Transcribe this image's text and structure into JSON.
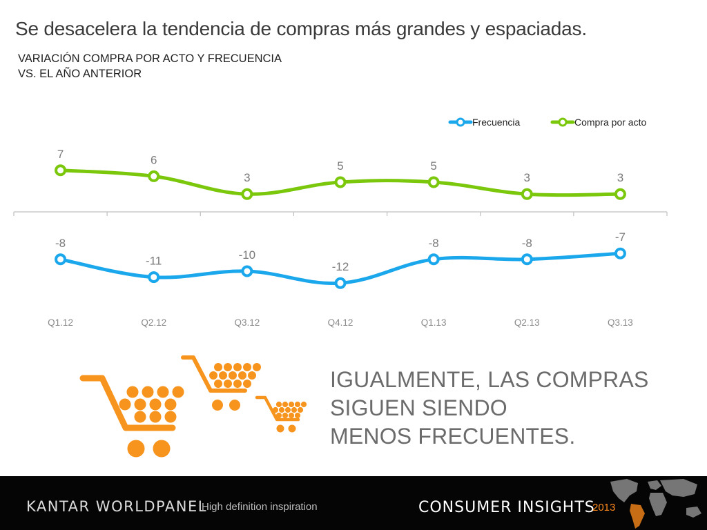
{
  "slide": {
    "title": "Se desacelera la tendencia de compras más grandes y espaciadas.",
    "subtitle_line1": "VARIACIÓN COMPRA POR ACTO Y FRECUENCIA",
    "subtitle_line2": "VS. EL AÑO ANTERIOR",
    "message_line1": "IGUALMENTE, LAS COMPRAS",
    "message_line2": "SIGUEN SIENDO",
    "message_line3": "MENOS FRECUENTES."
  },
  "chart_data": {
    "type": "line",
    "categories": [
      "Q1.12",
      "Q2.12",
      "Q3.12",
      "Q4.12",
      "Q1.13",
      "Q2.13",
      "Q3.13"
    ],
    "series": [
      {
        "name": "Frecuencia",
        "values": [
          -8,
          -11,
          -10,
          -12,
          -8,
          -8,
          -7
        ],
        "color": "#1aa7ec"
      },
      {
        "name": "Compra por acto",
        "values": [
          7,
          6,
          3,
          5,
          5,
          3,
          3
        ],
        "color": "#7ac70c"
      }
    ],
    "ylim": [
      -13,
      8
    ],
    "legend_position": "top-right",
    "grid": false,
    "data_labels": true
  },
  "colors": {
    "accent_orange": "#f7941d",
    "footer_bg": "#050505",
    "year_orange": "#ff8a1e"
  },
  "footer": {
    "brand": "KANTAR WORLDPANEL",
    "tagline": "High definition inspiration",
    "section": "CONSUMER INSIGHTS",
    "year": "2013"
  }
}
